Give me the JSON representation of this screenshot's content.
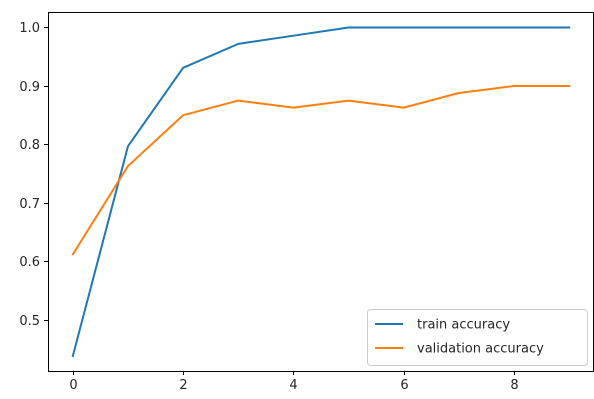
{
  "chart_data": {
    "type": "line",
    "title": "",
    "xlabel": "",
    "ylabel": "",
    "x": [
      0,
      1,
      2,
      3,
      4,
      5,
      6,
      7,
      8,
      9
    ],
    "xlim": [
      -0.45,
      9.45
    ],
    "ylim": [
      0.4125,
      1.0265
    ],
    "x_ticks": [
      0,
      2,
      4,
      6,
      8
    ],
    "x_tick_labels": [
      "0",
      "2",
      "4",
      "6",
      "8"
    ],
    "y_ticks": [
      0.5,
      0.6,
      0.7,
      0.8,
      0.9,
      1.0
    ],
    "y_tick_labels": [
      "0.5",
      "0.6",
      "0.7",
      "0.8",
      "0.9",
      "1.0"
    ],
    "grid": false,
    "legend_position": "lower-right",
    "series": [
      {
        "name": "train accuracy",
        "color": "#1f77b4",
        "values": [
          0.438,
          0.797,
          0.931,
          0.972,
          0.986,
          1.0,
          1.0,
          1.0,
          1.0,
          1.0
        ]
      },
      {
        "name": "validation accuracy",
        "color": "#ff7f0e",
        "values": [
          0.612,
          0.763,
          0.85,
          0.875,
          0.863,
          0.875,
          0.863,
          0.888,
          0.9,
          0.9
        ]
      }
    ]
  }
}
